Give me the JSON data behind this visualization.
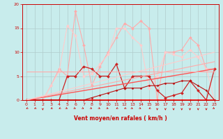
{
  "bg_color": "#c8ecec",
  "grid_color": "#b0cccc",
  "xlabel": "Vent moyen/en rafales ( km/h )",
  "xlim": [
    -0.5,
    23.5
  ],
  "ylim": [
    0,
    20
  ],
  "yticks": [
    0,
    5,
    10,
    15,
    20
  ],
  "xticks": [
    0,
    1,
    2,
    3,
    4,
    5,
    6,
    7,
    8,
    9,
    10,
    11,
    12,
    13,
    14,
    15,
    16,
    17,
    18,
    19,
    20,
    21,
    22,
    23
  ],
  "lines": [
    {
      "x": [
        0,
        1,
        2,
        3,
        4,
        5,
        6,
        7,
        8,
        9,
        10,
        11,
        12,
        13,
        14,
        15,
        16,
        17,
        18,
        19,
        20,
        21,
        22,
        23
      ],
      "y": [
        0,
        0,
        0,
        3,
        6.5,
        5,
        18.5,
        11.5,
        3,
        7,
        10,
        13,
        16,
        15,
        16.5,
        15,
        0,
        10,
        10,
        10.5,
        13,
        11.5,
        6.5,
        6.5
      ],
      "color": "#ffaaaa",
      "lw": 0.8,
      "marker": "D",
      "ms": 2.0
    },
    {
      "x": [
        0,
        1,
        2,
        3,
        4,
        5,
        6,
        7,
        8,
        9,
        10,
        11,
        12,
        13,
        14,
        15,
        16,
        17,
        18,
        19,
        20,
        21,
        22,
        23
      ],
      "y": [
        0,
        0,
        0,
        3,
        6,
        15.5,
        13.5,
        5,
        5.5,
        7.5,
        9.5,
        15,
        15,
        13,
        11.5,
        2.5,
        5,
        10,
        9.5,
        9,
        10.5,
        9,
        6.5,
        0
      ],
      "color": "#ffcccc",
      "lw": 0.8,
      "marker": "D",
      "ms": 2.0
    },
    {
      "x": [
        0,
        1,
        2,
        3,
        4,
        5,
        6,
        7,
        8,
        9,
        10,
        11,
        12,
        13,
        14,
        15,
        16,
        17,
        18,
        19,
        20,
        21,
        22,
        23
      ],
      "y": [
        0,
        0,
        0,
        0,
        0,
        5,
        5,
        7,
        6.5,
        5,
        5,
        7.5,
        2.5,
        5,
        5,
        5,
        2,
        0.5,
        1,
        1.5,
        4,
        2,
        0,
        6.5
      ],
      "color": "#cc2222",
      "lw": 0.9,
      "marker": "D",
      "ms": 2.0
    },
    {
      "x": [
        0,
        1,
        2,
        3,
        4,
        5,
        6,
        7,
        8,
        9,
        10,
        11,
        12,
        13,
        14,
        15,
        16,
        17,
        18,
        19,
        20,
        21,
        22,
        23
      ],
      "y": [
        0,
        0,
        0,
        0,
        0,
        0,
        0,
        0,
        0,
        0,
        0,
        0,
        0,
        0,
        0,
        0,
        0,
        0,
        0,
        0,
        0,
        0,
        0,
        0
      ],
      "color": "#ff0000",
      "lw": 1.2,
      "marker": "D",
      "ms": 1.5
    },
    {
      "x": [
        0,
        1,
        2,
        3,
        4,
        5,
        6,
        7,
        8,
        9,
        10,
        11,
        12,
        13,
        14,
        15,
        16,
        17,
        18,
        19,
        20,
        21,
        22,
        23
      ],
      "y": [
        0,
        0,
        0,
        0,
        0,
        0,
        0,
        0,
        0.5,
        1,
        1.5,
        2,
        2.5,
        2.5,
        2.5,
        3,
        3,
        3.5,
        3.5,
        4,
        4,
        3,
        2,
        0
      ],
      "color": "#bb1111",
      "lw": 0.8,
      "marker": "D",
      "ms": 1.5
    },
    {
      "x": [
        0,
        23
      ],
      "y": [
        0,
        6.5
      ],
      "color": "#ff5555",
      "lw": 1.0,
      "marker": null,
      "ms": 0
    },
    {
      "x": [
        0,
        23
      ],
      "y": [
        0,
        8.0
      ],
      "color": "#ffaaaa",
      "lw": 0.8,
      "marker": null,
      "ms": 0
    },
    {
      "x": [
        0,
        23
      ],
      "y": [
        6,
        6
      ],
      "color": "#ffaaaa",
      "lw": 0.8,
      "marker": null,
      "ms": 0
    },
    {
      "x": [
        0,
        23
      ],
      "y": [
        0,
        10.0
      ],
      "color": "#ffcccc",
      "lw": 0.8,
      "marker": null,
      "ms": 0
    }
  ],
  "arrow_angles": [
    225,
    225,
    270,
    225,
    225,
    315,
    315,
    315,
    315,
    315,
    315,
    225,
    225,
    315,
    315,
    225,
    270,
    270,
    270,
    270,
    270,
    270,
    270,
    315
  ]
}
